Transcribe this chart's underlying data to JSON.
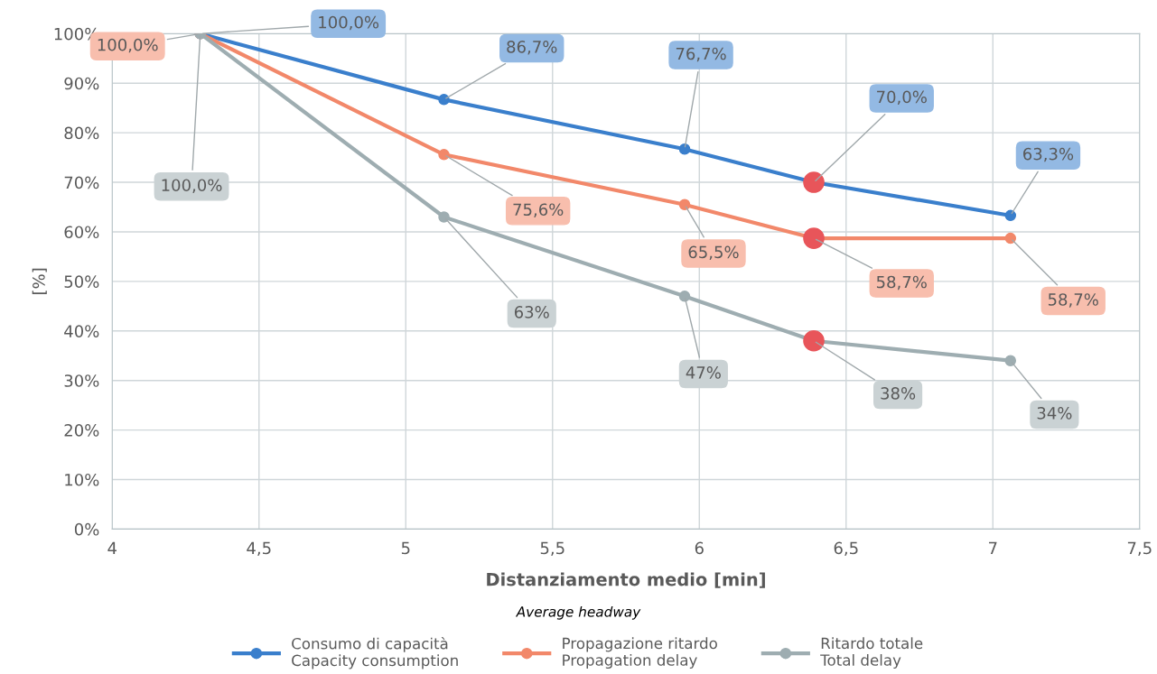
{
  "chart_data": {
    "type": "line",
    "x": [
      4.3,
      5.13,
      5.95,
      6.39,
      7.06
    ],
    "series": [
      {
        "name": "Consumo di capacità\nCapacity consumption",
        "color": "#3a7fcc",
        "values": [
          100,
          86.7,
          76.7,
          70.0,
          63.3
        ],
        "value_labels": [
          "100,0%",
          "86,7%",
          "76,7%",
          "70,0%",
          "63,3%"
        ]
      },
      {
        "name": "Propagazione ritardo\nPropagation delay",
        "color": "#f2886a",
        "values": [
          100,
          75.6,
          65.5,
          58.7,
          58.7
        ],
        "value_labels": [
          "100,0%",
          "75,6%",
          "65,5%",
          "58,7%",
          "58,7%"
        ]
      },
      {
        "name": "Ritardo totale\nTotal delay",
        "color": "#9eadb1",
        "values": [
          100,
          63,
          47,
          38,
          34
        ],
        "value_labels": [
          "100,0%",
          "63%",
          "47%",
          "38%",
          "34%"
        ]
      },
      {
        "type": "scatter",
        "color": "#e8555a",
        "values": [
          null,
          null,
          null,
          70.0,
          null
        ]
      },
      {
        "type": "scatter",
        "color": "#e8555a",
        "values": [
          null,
          null,
          null,
          58.7,
          null
        ]
      },
      {
        "type": "scatter",
        "color": "#e8555a",
        "values": [
          null,
          null,
          null,
          38,
          null
        ]
      }
    ],
    "xlabel": "Distanziamento medio [min]",
    "ylabel": "[%]",
    "annotations": [
      "Average headway"
    ],
    "xlim": [
      4,
      7.5
    ],
    "xticks": [
      4,
      {
        "value": 4.5,
        "label": "4,5"
      },
      5,
      {
        "value": 5.5,
        "label": "5,5"
      },
      6,
      {
        "value": 6.5,
        "label": "6,5"
      },
      7,
      {
        "value": 7.5,
        "label": "7,5"
      }
    ],
    "ylim": [
      0,
      100
    ],
    "yticks": [
      {
        "value": 0,
        "label": "0%"
      },
      {
        "value": 10,
        "label": "10%"
      },
      {
        "value": 20,
        "label": "20%"
      },
      {
        "value": 30,
        "label": "30%"
      },
      {
        "value": 40,
        "label": "40%"
      },
      {
        "value": 50,
        "label": "50%"
      },
      {
        "value": 60,
        "label": "60%"
      },
      {
        "value": 70,
        "label": "70%"
      },
      {
        "value": 80,
        "label": "80%"
      },
      {
        "value": 90,
        "label": "90%"
      },
      {
        "value": 100,
        "label": "100%"
      }
    ],
    "grid": true,
    "legend": "bottom",
    "marker": "circle",
    "line_style": "solid"
  }
}
